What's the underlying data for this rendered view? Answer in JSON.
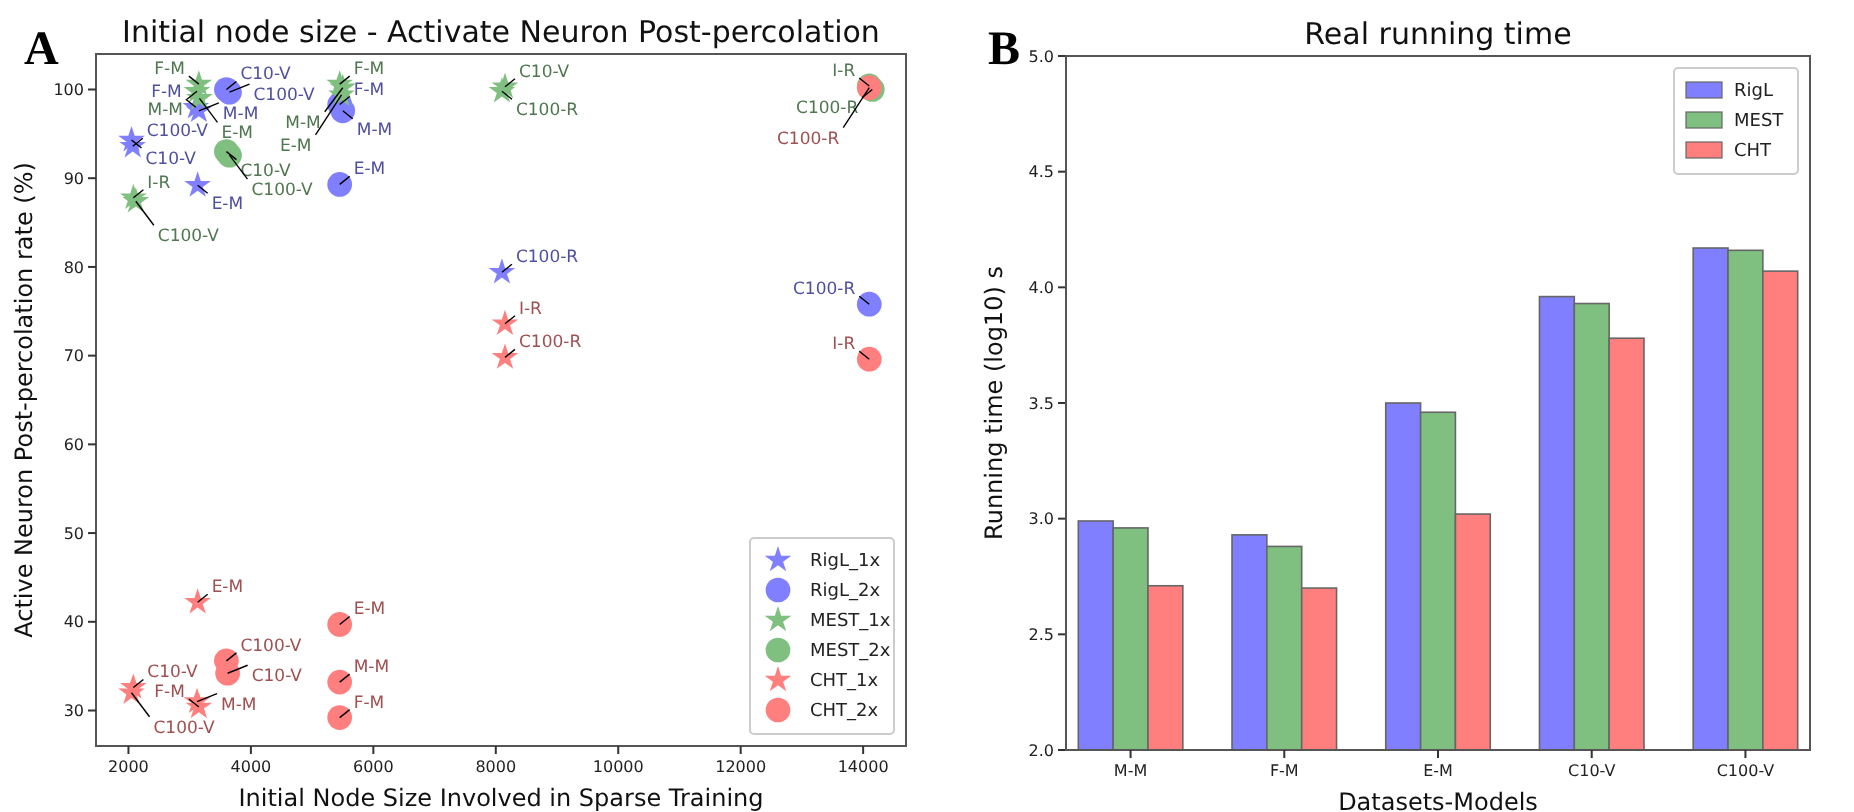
{
  "chart_data": [
    {
      "type": "scatter",
      "title": "Initial node size - Activate Neuron Post-percolation",
      "xlabel": "Initial Node Size Involved in Sparse Training",
      "ylabel": "Active Neuron Post-percolation rate (%)",
      "annotations": [
        "A"
      ],
      "xlim": [
        1470,
        14700
      ],
      "ylim": [
        26,
        104
      ],
      "xticks": [
        2000,
        4000,
        6000,
        8000,
        10000,
        12000,
        14000
      ],
      "yticks": [
        30,
        40,
        50,
        60,
        70,
        80,
        90,
        100
      ],
      "grid": false,
      "legend": "bottom right",
      "series": [
        {
          "name": "RigL_1x",
          "color": "#7f7fff",
          "marker": "star",
          "x": [
            2050,
            2070,
            3130,
            3100,
            3150,
            8100
          ],
          "values": [
            94.3,
            93.6,
            89.2,
            98.0,
            97.6,
            79.4
          ],
          "value_labels": [
            "C10-V",
            "C100-V",
            "E-M",
            "F-M",
            "M-M",
            "C100-R"
          ]
        },
        {
          "name": "RigL_2x",
          "color": "#7f7fff",
          "marker": "circle",
          "x": [
            3600,
            3650,
            5450,
            5500,
            5450,
            14100
          ],
          "values": [
            100.0,
            99.7,
            98.3,
            97.6,
            89.3,
            75.8
          ],
          "value_labels": [
            "C10-V",
            "C100-V",
            "F-M",
            "M-M",
            "E-M",
            "C100-R"
          ]
        },
        {
          "name": "MEST_1x",
          "color": "#7fbf7f",
          "marker": "star",
          "x": [
            3150,
            3120,
            3160,
            2080,
            2120,
            5450,
            5500,
            5480,
            8150,
            8100
          ],
          "values": [
            100.6,
            99.8,
            99.0,
            87.8,
            87.4,
            100.6,
            100.2,
            99.4,
            100.3,
            99.8
          ],
          "value_labels": [
            "F-M",
            "M-M",
            "E-M",
            "I-R",
            "C100-V",
            "F-M",
            "M-M",
            "E-M",
            "C10-V",
            "C100-R"
          ]
        },
        {
          "name": "MEST_2x",
          "color": "#7fbf7f",
          "marker": "circle",
          "x": [
            3600,
            3650,
            14100,
            14150
          ],
          "values": [
            93.0,
            92.6,
            100.4,
            100.0
          ],
          "value_labels": [
            "C10-V",
            "C100-V",
            "I-R",
            "C100-R"
          ]
        },
        {
          "name": "CHT_1x",
          "color": "#ff7f7f",
          "marker": "star",
          "x": [
            8150,
            8150,
            3130,
            2080,
            2050,
            3120,
            3150
          ],
          "values": [
            73.6,
            69.8,
            42.2,
            32.6,
            32.0,
            31.0,
            30.4
          ],
          "value_labels": [
            "I-R",
            "C100-R",
            "E-M",
            "C10-V",
            "C100-V",
            "M-M",
            "F-M"
          ]
        },
        {
          "name": "CHT_2x",
          "color": "#ff7f7f",
          "marker": "circle",
          "x": [
            14100,
            14100,
            5450,
            3600,
            3620,
            5450,
            5450
          ],
          "values": [
            100.2,
            69.6,
            39.7,
            35.6,
            34.2,
            33.2,
            29.2
          ],
          "value_labels": [
            "C100-R",
            "I-R",
            "E-M",
            "C100-V",
            "C10-V",
            "M-M",
            "F-M"
          ]
        }
      ]
    },
    {
      "type": "bar",
      "title": "Real running time",
      "xlabel": "Datasets-Models",
      "ylabel": "Running time (log10) s",
      "annotations": [
        "B"
      ],
      "categories": [
        "M-M",
        "F-M",
        "E-M",
        "C10-V",
        "C100-V"
      ],
      "ylim": [
        2,
        5
      ],
      "yticks": [
        {
          "value": 2,
          "label": "2.0"
        },
        {
          "value": 2.5,
          "label": "2.5"
        },
        {
          "value": 3,
          "label": "3.0"
        },
        {
          "value": 3.5,
          "label": "3.5"
        },
        {
          "value": 4,
          "label": "4.0"
        },
        {
          "value": 4.5,
          "label": "4.5"
        },
        {
          "value": 5,
          "label": "5.0"
        }
      ],
      "grid": false,
      "legend": "top right",
      "series": [
        {
          "name": "RigL",
          "color": "#7f7fff",
          "values": [
            2.99,
            2.93,
            3.5,
            3.96,
            4.17
          ]
        },
        {
          "name": "MEST",
          "color": "#7fbf7f",
          "values": [
            2.96,
            2.88,
            3.46,
            3.93,
            4.16
          ]
        },
        {
          "name": "CHT",
          "color": "#ff7f7f",
          "values": [
            2.71,
            2.7,
            3.02,
            3.78,
            4.07
          ]
        }
      ]
    }
  ]
}
